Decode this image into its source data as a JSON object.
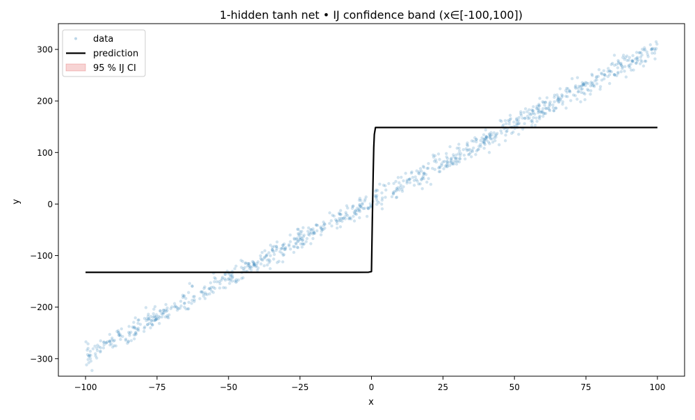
{
  "chart_data": {
    "type": "scatter",
    "title": "1-hidden tanh net • IJ confidence band (x∈[-100,100])",
    "xlabel": "x",
    "ylabel": "y",
    "xlim": [
      -109.5,
      109.5
    ],
    "ylim": [
      -334,
      350
    ],
    "xticks": [
      -100,
      -75,
      -50,
      -25,
      0,
      25,
      50,
      75,
      100
    ],
    "xtick_labels": [
      "−100",
      "−75",
      "−50",
      "−25",
      "0",
      "25",
      "50",
      "75",
      "100"
    ],
    "yticks": [
      -300,
      -200,
      -100,
      0,
      100,
      200,
      300
    ],
    "ytick_labels": [
      "−300",
      "−200",
      "−100",
      "0",
      "100",
      "200",
      "300"
    ],
    "grid": false,
    "legend_position": "upper-left",
    "colors": {
      "data": "#1f77b4",
      "prediction": "#000000",
      "ci": "#d62728"
    },
    "series": [
      {
        "name": "data",
        "kind": "scatter",
        "n_points": 1000,
        "x_range": [
          -100,
          100
        ],
        "slope": 3.0,
        "intercept": 5,
        "noise_sd": 10,
        "alpha": 0.2
      },
      {
        "name": "prediction",
        "kind": "line",
        "x": [
          -100,
          -80,
          -60,
          -40,
          -20,
          -5,
          -1,
          0,
          0.3,
          0.6,
          0.8,
          1,
          1.4,
          2,
          5,
          20,
          40,
          60,
          80,
          100
        ],
        "y": [
          -132.5,
          -132.5,
          -132.5,
          -132.5,
          -132.5,
          -132.5,
          -132.3,
          -131,
          -30,
          60,
          110,
          135,
          148.5,
          148.5,
          148.5,
          148.5,
          148.5,
          148.5,
          148.5,
          148.5
        ]
      },
      {
        "name": "95 % IJ CI",
        "kind": "band"
      }
    ]
  }
}
